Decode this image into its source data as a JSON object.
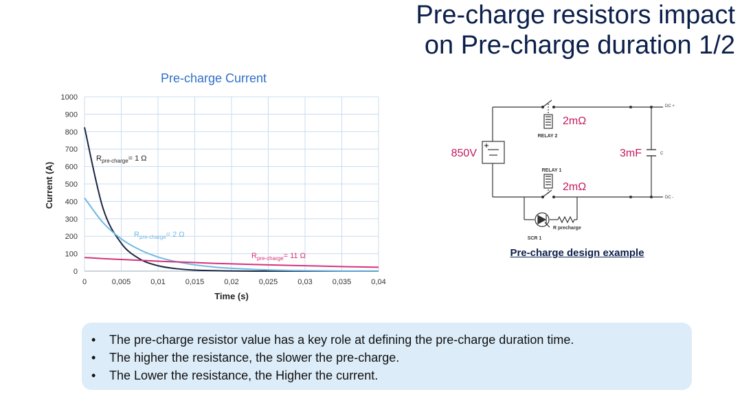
{
  "slide": {
    "title_line1": "Pre-charge resistors impact",
    "title_line2": "on Pre-charge duration 1/2"
  },
  "chart_data": {
    "type": "line",
    "title": "Pre-charge Current",
    "xlabel": "Time (s)",
    "ylabel": "Current (A)",
    "xlim": [
      0,
      0.04
    ],
    "ylim": [
      0,
      1000
    ],
    "x_ticks": [
      "0",
      "0,005",
      "0,01",
      "0,015",
      "0,02",
      "0,025",
      "0,03",
      "0,035",
      "0,04"
    ],
    "y_ticks": [
      "0",
      "100",
      "200",
      "300",
      "400",
      "500",
      "600",
      "700",
      "800",
      "900",
      "1000"
    ],
    "grid": true,
    "x": [
      0,
      0.0025,
      0.005,
      0.0075,
      0.01,
      0.0125,
      0.015,
      0.0175,
      0.02,
      0.025,
      0.03,
      0.035,
      0.04
    ],
    "series": [
      {
        "label_main": "R",
        "label_sub": "pre-charge",
        "label_value": "= 1 Ω",
        "color": "#1a2540",
        "values": [
          825,
          363,
          160,
          70,
          31,
          14,
          6,
          3,
          1,
          0,
          0,
          0,
          0
        ]
      },
      {
        "label_main": "R",
        "label_sub": "pre-charge",
        "label_value": "= 2 Ω",
        "color": "#6fb8e2",
        "values": [
          420,
          279,
          185,
          123,
          81,
          54,
          36,
          24,
          16,
          7,
          3,
          1,
          1
        ]
      },
      {
        "label_main": "R",
        "label_sub": "pre-charge",
        "label_value": "= 11 Ω",
        "color": "#d6317a",
        "values": [
          78,
          72,
          67,
          62,
          57,
          53,
          49,
          45,
          42,
          36,
          31,
          26,
          22
        ]
      }
    ]
  },
  "circuit": {
    "caption": "Pre-charge design example",
    "voltage": "850V",
    "capacitance": "3mF",
    "relay2_resistance": "2mΩ",
    "relay1_resistance": "2mΩ",
    "relay2_label": "RELAY 2",
    "relay1_label": "RELAY 1",
    "dc_plus": "DC +",
    "dc_minus": "DC -",
    "cap_label": "C",
    "scr_label": "SCR 1",
    "rpre_label": "R precharge",
    "accent_color": "#c2185b"
  },
  "notes": [
    "The pre-charge resistor value has a key role at defining the pre-charge duration time.",
    "The higher the resistance, the slower the pre-charge.",
    "The Lower the resistance, the Higher the current."
  ]
}
